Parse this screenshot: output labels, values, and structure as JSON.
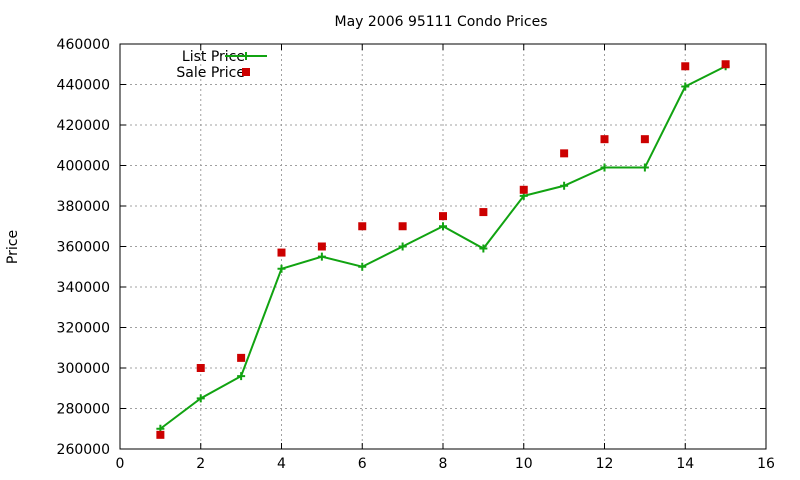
{
  "chart_data": {
    "type": "line",
    "title": "May 2006 95111 Condo Prices",
    "xlabel": "",
    "ylabel": "Price",
    "xlim": [
      0,
      16
    ],
    "ylim": [
      260000,
      460000
    ],
    "x_ticks": [
      0,
      2,
      4,
      6,
      8,
      10,
      12,
      14,
      16
    ],
    "y_ticks": [
      260000,
      280000,
      300000,
      320000,
      340000,
      360000,
      380000,
      400000,
      420000,
      440000,
      460000
    ],
    "grid": true,
    "legend_position": "top-left",
    "series": [
      {
        "name": "List Price",
        "style": "line+cross",
        "color": "#11a311",
        "x": [
          1,
          2,
          3,
          4,
          5,
          6,
          7,
          8,
          9,
          10,
          11,
          12,
          13,
          14,
          15
        ],
        "values": [
          270000,
          285000,
          296000,
          349000,
          355000,
          350000,
          360000,
          370000,
          359000,
          385000,
          390000,
          399000,
          399000,
          439000,
          449000
        ]
      },
      {
        "name": "Sale Price",
        "style": "square",
        "color": "#cc0000",
        "x": [
          1,
          2,
          3,
          4,
          5,
          6,
          7,
          8,
          9,
          10,
          11,
          12,
          13,
          14,
          15
        ],
        "values": [
          267000,
          300000,
          305000,
          357000,
          360000,
          370000,
          370000,
          375000,
          377000,
          388000,
          406000,
          413000,
          413000,
          449000,
          450000
        ]
      }
    ]
  }
}
